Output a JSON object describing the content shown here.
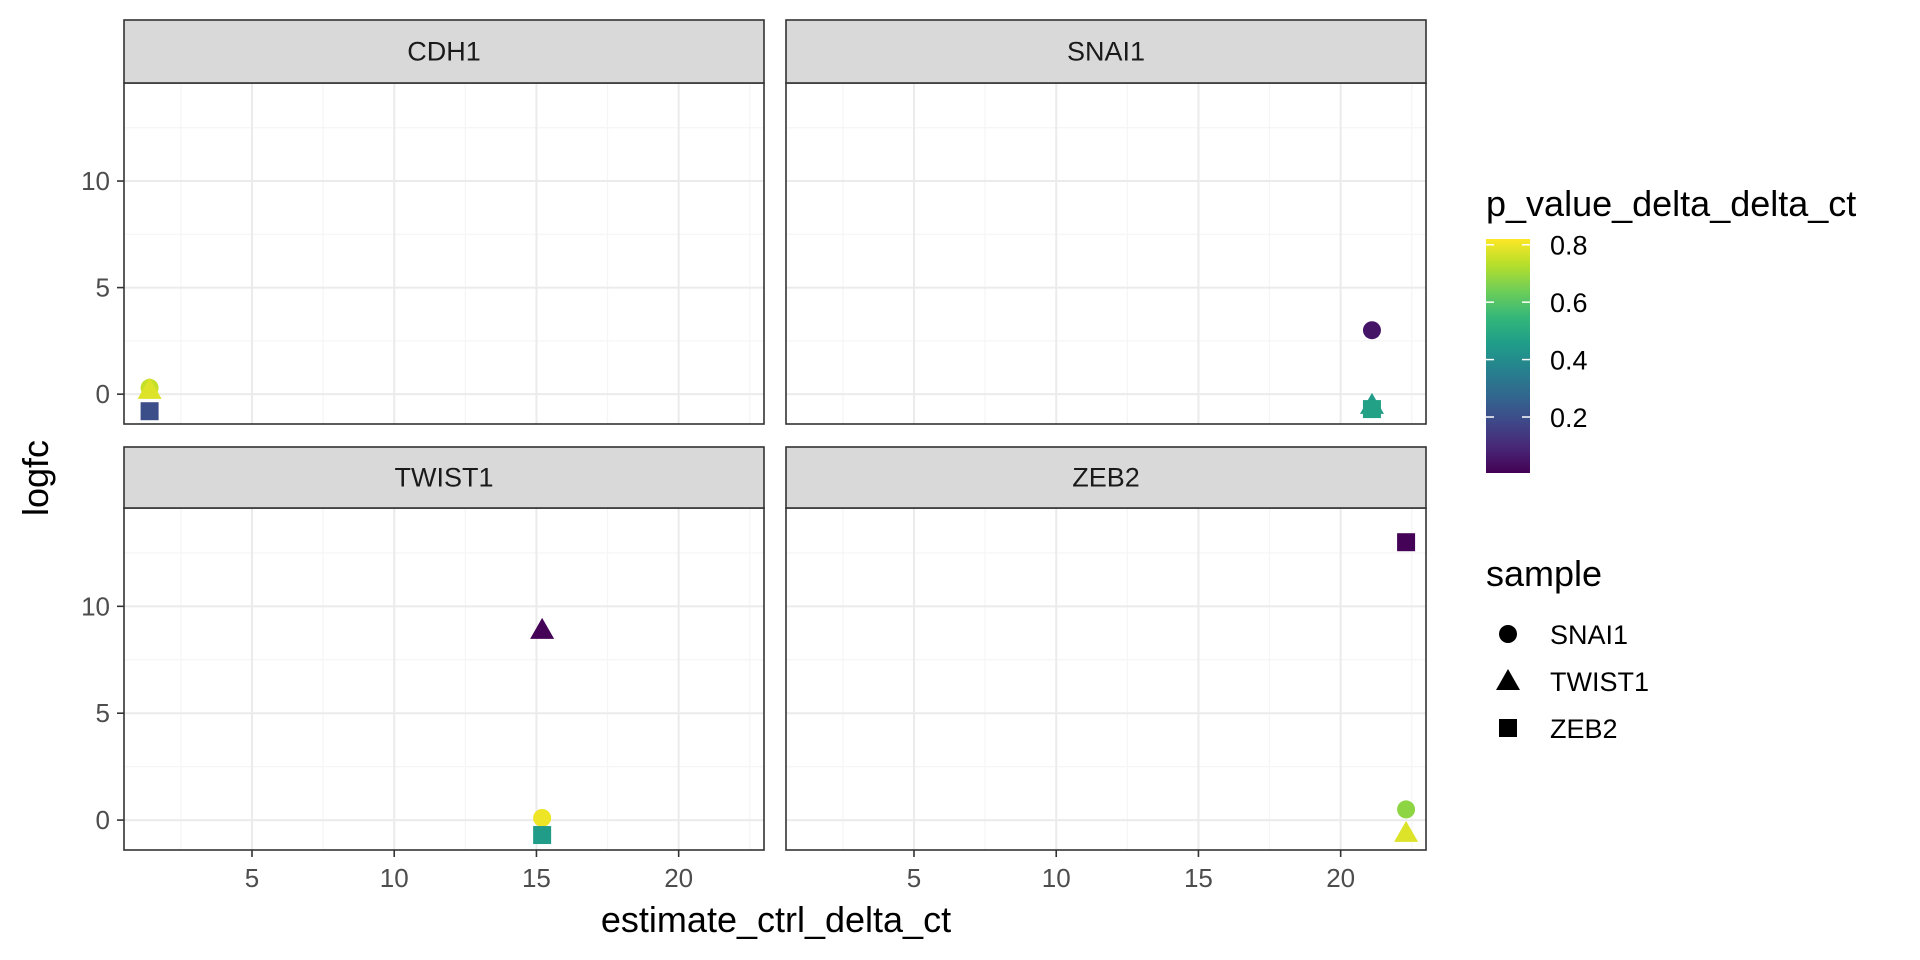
{
  "chart_data": {
    "type": "scatter",
    "facet_by": "gene",
    "x_label": "estimate_ctrl_delta_ct",
    "y_label": "logfc",
    "xlim": [
      0.5,
      23
    ],
    "ylim": [
      -1.4,
      14.6
    ],
    "x_ticks": [
      5,
      10,
      15,
      20
    ],
    "y_ticks": [
      0,
      5,
      10
    ],
    "grid": true,
    "legend_position": "right",
    "facets": [
      {
        "title": "CDH1",
        "points": [
          {
            "sample": "SNAI1",
            "x": 1.4,
            "y": 0.3,
            "p": 0.75
          },
          {
            "sample": "TWIST1",
            "x": 1.4,
            "y": 0.2,
            "p": 0.78
          },
          {
            "sample": "ZEB2",
            "x": 1.4,
            "y": -0.8,
            "p": 0.2
          }
        ]
      },
      {
        "title": "SNAI1",
        "points": [
          {
            "sample": "SNAI1",
            "x": 21.1,
            "y": 3.0,
            "p": 0.05
          },
          {
            "sample": "TWIST1",
            "x": 21.1,
            "y": -0.5,
            "p": 0.45
          },
          {
            "sample": "ZEB2",
            "x": 21.1,
            "y": -0.7,
            "p": 0.47
          }
        ]
      },
      {
        "title": "TWIST1",
        "points": [
          {
            "sample": "SNAI1",
            "x": 15.2,
            "y": 0.1,
            "p": 0.8
          },
          {
            "sample": "TWIST1",
            "x": 15.2,
            "y": 8.9,
            "p": 0.01
          },
          {
            "sample": "ZEB2",
            "x": 15.2,
            "y": -0.7,
            "p": 0.45
          }
        ]
      },
      {
        "title": "ZEB2",
        "points": [
          {
            "sample": "SNAI1",
            "x": 22.3,
            "y": 0.5,
            "p": 0.68
          },
          {
            "sample": "TWIST1",
            "x": 22.3,
            "y": -0.6,
            "p": 0.78
          },
          {
            "sample": "ZEB2",
            "x": 22.3,
            "y": 13.0,
            "p": 0.01
          }
        ]
      }
    ],
    "color_legend": {
      "title": "p_value_delta_delta_ct",
      "breaks": [
        0.2,
        0.4,
        0.6,
        0.8
      ],
      "labels": [
        "0.2",
        "0.4",
        "0.6",
        "0.8"
      ],
      "range": [
        0.005,
        0.82
      ],
      "palette": [
        "#440154",
        "#482878",
        "#3e4989",
        "#31688e",
        "#26828e",
        "#1f9e89",
        "#35b779",
        "#6ece58",
        "#b5de2b",
        "#fde725"
      ]
    },
    "shape_legend": {
      "title": "sample",
      "items": [
        {
          "label": "SNAI1",
          "shape": "circle"
        },
        {
          "label": "TWIST1",
          "shape": "triangle"
        },
        {
          "label": "ZEB2",
          "shape": "square"
        }
      ]
    },
    "colors": {
      "strip_fill": "#d9d9d9",
      "strip_border": "#333333",
      "grid_major": "#ebebeb",
      "grid_minor": "#f5f5f5",
      "panel_border": "#333333"
    }
  }
}
